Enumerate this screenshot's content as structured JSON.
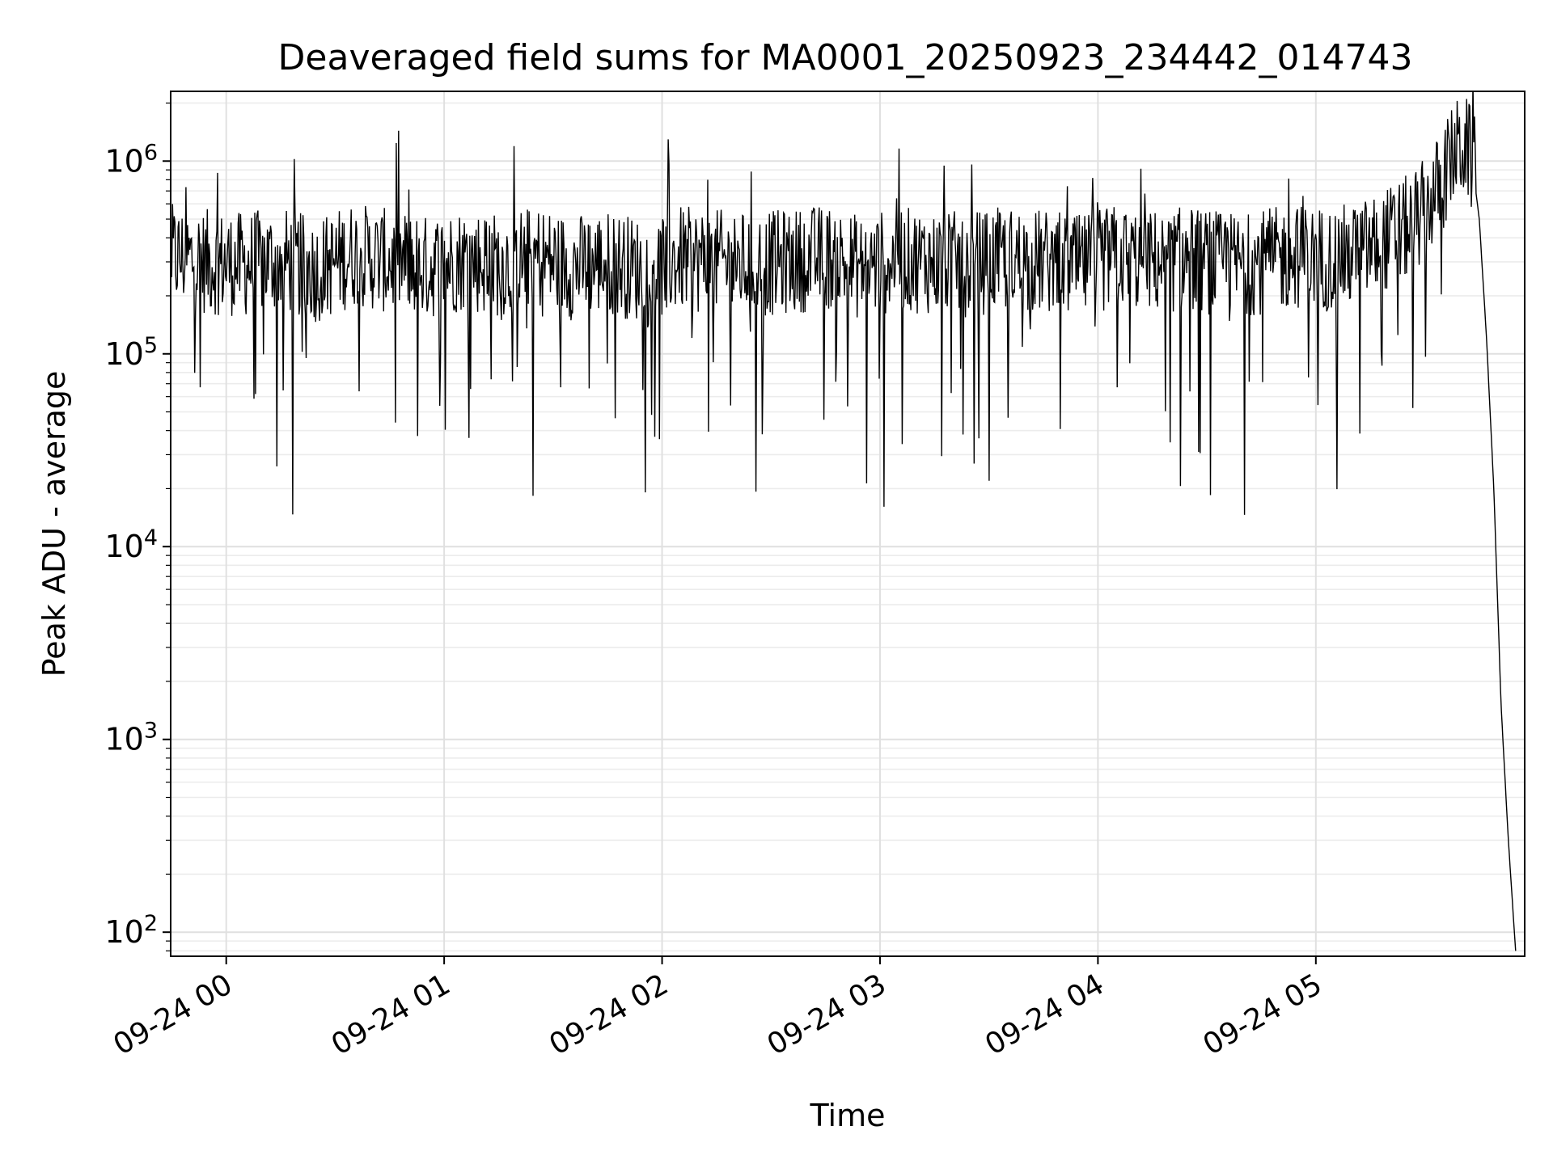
{
  "chart_data": {
    "type": "line",
    "title": "Deaveraged field sums for MA0001_20250923_234442_014743",
    "xlabel": "Time",
    "ylabel": "Peak ADU - average",
    "yscale": "log",
    "ylim": [
      75,
      2300000
    ],
    "xlim": [
      "2025-09-23 23:44:42",
      "2025-09-24 05:57:30"
    ],
    "grid": true,
    "x_ticks": [
      {
        "time": "2025-09-24 00:00",
        "label": "09-24 00"
      },
      {
        "time": "2025-09-24 01:00",
        "label": "09-24 01"
      },
      {
        "time": "2025-09-24 02:00",
        "label": "09-24 02"
      },
      {
        "time": "2025-09-24 03:00",
        "label": "09-24 03"
      },
      {
        "time": "2025-09-24 04:00",
        "label": "09-24 04"
      },
      {
        "time": "2025-09-24 05:00",
        "label": "09-24 05"
      }
    ],
    "y_ticks": [
      {
        "value": 100,
        "base": "10",
        "exp": "2"
      },
      {
        "value": 1000,
        "base": "10",
        "exp": "3"
      },
      {
        "value": 10000,
        "base": "10",
        "exp": "4"
      },
      {
        "value": 100000,
        "base": "10",
        "exp": "5"
      },
      {
        "value": 1000000,
        "base": "10",
        "exp": "6"
      }
    ],
    "series": [
      {
        "color": "#000000",
        "x": [
          "2025-09-23 23:45",
          "2025-09-23 23:55",
          "2025-09-24 00:05",
          "2025-09-24 00:15",
          "2025-09-24 00:25",
          "2025-09-24 00:35",
          "2025-09-24 00:45",
          "2025-09-24 00:55",
          "2025-09-24 01:05",
          "2025-09-24 01:15",
          "2025-09-24 01:25",
          "2025-09-24 01:35",
          "2025-09-24 01:45",
          "2025-09-24 01:55",
          "2025-09-24 02:05",
          "2025-09-24 02:15",
          "2025-09-24 02:25",
          "2025-09-24 02:35",
          "2025-09-24 02:45",
          "2025-09-24 02:55",
          "2025-09-24 03:05",
          "2025-09-24 03:15",
          "2025-09-24 03:25",
          "2025-09-24 03:35",
          "2025-09-24 03:45",
          "2025-09-24 03:55",
          "2025-09-24 04:05",
          "2025-09-24 04:15",
          "2025-09-24 04:25",
          "2025-09-24 04:35",
          "2025-09-24 04:45",
          "2025-09-24 04:55",
          "2025-09-24 05:05",
          "2025-09-24 05:15",
          "2025-09-24 05:25",
          "2025-09-24 05:30",
          "2025-09-24 05:35",
          "2025-09-24 05:38",
          "2025-09-24 05:41",
          "2025-09-24 05:43",
          "2025-09-24 05:45",
          "2025-09-24 05:47",
          "2025-09-24 05:49",
          "2025-09-24 05:51",
          "2025-09-24 05:53",
          "2025-09-24 05:55"
        ],
        "y": [
          320000,
          300000,
          290000,
          310000,
          270000,
          330000,
          300000,
          280000,
          310000,
          290000,
          320000,
          280000,
          300000,
          270000,
          310000,
          300000,
          290000,
          300000,
          320000,
          280000,
          310000,
          300000,
          290000,
          310000,
          300000,
          280000,
          320000,
          300000,
          310000,
          290000,
          300000,
          320000,
          310000,
          350000,
          450000,
          550000,
          800000,
          1100000,
          1200000,
          1000000,
          500000,
          120000,
          20000,
          1500,
          300,
          80
        ]
      }
    ]
  }
}
